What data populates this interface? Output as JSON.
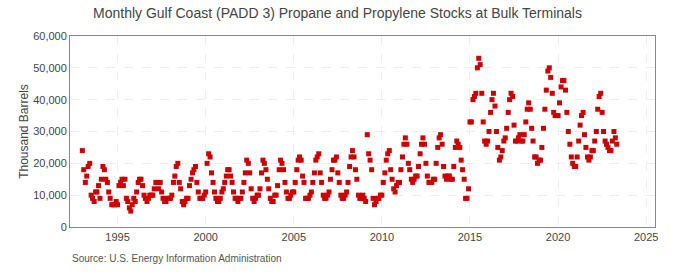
{
  "chart_data": {
    "type": "scatter",
    "title": "Monthly Gulf Coast (PADD 3) Propane and Propylene Stocks at Bulk Terminals",
    "y_label": "Thousand Barrels",
    "annotations": [
      "Source: U.S. Energy Information Administration"
    ],
    "color": "#cc0000",
    "marker": "square",
    "grid": true,
    "xlim": [
      1992.3,
      2025.5
    ],
    "ylim": [
      0,
      60000
    ],
    "xticks": [
      1995,
      2000,
      2005,
      2010,
      2015,
      2020,
      2025
    ],
    "yticks": [
      0,
      {
        "value": 10000,
        "label": "10,000"
      },
      {
        "value": 20000,
        "label": "20,000"
      },
      {
        "value": 30000,
        "label": "30,000"
      },
      {
        "value": 40000,
        "label": "40,000"
      },
      {
        "value": 50000,
        "label": "50,000"
      },
      {
        "value": 60000,
        "label": "60,000"
      }
    ],
    "x": [
      1993.0,
      1993.08,
      1993.17,
      1993.25,
      1993.33,
      1993.42,
      1993.5,
      1993.58,
      1993.67,
      1993.75,
      1993.83,
      1993.92,
      1994.0,
      1994.08,
      1994.17,
      1994.25,
      1994.33,
      1994.42,
      1994.5,
      1994.58,
      1994.67,
      1994.75,
      1994.83,
      1994.92,
      1995.0,
      1995.08,
      1995.17,
      1995.25,
      1995.33,
      1995.42,
      1995.5,
      1995.58,
      1995.67,
      1995.75,
      1995.83,
      1995.92,
      1996.0,
      1996.08,
      1996.17,
      1996.25,
      1996.33,
      1996.42,
      1996.5,
      1996.58,
      1996.67,
      1996.75,
      1996.83,
      1996.92,
      1997.0,
      1997.08,
      1997.17,
      1997.25,
      1997.33,
      1997.42,
      1997.5,
      1997.58,
      1997.67,
      1997.75,
      1997.83,
      1997.92,
      1998.0,
      1998.08,
      1998.17,
      1998.25,
      1998.33,
      1998.42,
      1998.5,
      1998.58,
      1998.67,
      1998.75,
      1998.83,
      1998.92,
      1999.0,
      1999.08,
      1999.17,
      1999.25,
      1999.33,
      1999.42,
      1999.5,
      1999.58,
      1999.67,
      1999.75,
      1999.83,
      1999.92,
      2000.0,
      2000.08,
      2000.17,
      2000.25,
      2000.33,
      2000.42,
      2000.5,
      2000.58,
      2000.67,
      2000.75,
      2000.83,
      2000.92,
      2001.0,
      2001.08,
      2001.17,
      2001.25,
      2001.33,
      2001.42,
      2001.5,
      2001.58,
      2001.67,
      2001.75,
      2001.83,
      2001.92,
      2002.0,
      2002.08,
      2002.17,
      2002.25,
      2002.33,
      2002.42,
      2002.5,
      2002.58,
      2002.67,
      2002.75,
      2002.83,
      2002.92,
      2003.0,
      2003.08,
      2003.17,
      2003.25,
      2003.33,
      2003.42,
      2003.5,
      2003.58,
      2003.67,
      2003.75,
      2003.83,
      2003.92,
      2004.0,
      2004.08,
      2004.17,
      2004.25,
      2004.33,
      2004.42,
      2004.5,
      2004.58,
      2004.67,
      2004.75,
      2004.83,
      2004.92,
      2005.0,
      2005.08,
      2005.17,
      2005.25,
      2005.33,
      2005.42,
      2005.5,
      2005.58,
      2005.67,
      2005.75,
      2005.83,
      2005.92,
      2006.0,
      2006.08,
      2006.17,
      2006.25,
      2006.33,
      2006.42,
      2006.5,
      2006.58,
      2006.67,
      2006.75,
      2006.83,
      2006.92,
      2007.0,
      2007.08,
      2007.17,
      2007.25,
      2007.33,
      2007.42,
      2007.5,
      2007.58,
      2007.67,
      2007.75,
      2007.83,
      2007.92,
      2008.0,
      2008.08,
      2008.17,
      2008.25,
      2008.33,
      2008.42,
      2008.5,
      2008.58,
      2008.67,
      2008.75,
      2008.83,
      2008.92,
      2009.0,
      2009.08,
      2009.17,
      2009.25,
      2009.33,
      2009.42,
      2009.5,
      2009.58,
      2009.67,
      2009.75,
      2009.83,
      2009.92,
      2010.0,
      2010.08,
      2010.17,
      2010.25,
      2010.33,
      2010.42,
      2010.5,
      2010.58,
      2010.67,
      2010.75,
      2010.83,
      2010.92,
      2011.0,
      2011.08,
      2011.17,
      2011.25,
      2011.33,
      2011.42,
      2011.5,
      2011.58,
      2011.67,
      2011.75,
      2011.83,
      2011.92,
      2012.0,
      2012.08,
      2012.17,
      2012.25,
      2012.33,
      2012.42,
      2012.5,
      2012.58,
      2012.67,
      2012.75,
      2012.83,
      2012.92,
      2013.0,
      2013.08,
      2013.17,
      2013.25,
      2013.33,
      2013.42,
      2013.5,
      2013.58,
      2013.67,
      2013.75,
      2013.83,
      2013.92,
      2014.0,
      2014.08,
      2014.17,
      2014.25,
      2014.33,
      2014.42,
      2014.5,
      2014.58,
      2014.67,
      2014.75,
      2014.83,
      2014.92,
      2015.0,
      2015.08,
      2015.17,
      2015.25,
      2015.33,
      2015.42,
      2015.5,
      2015.58,
      2015.67,
      2015.75,
      2015.83,
      2015.92,
      2016.0,
      2016.08,
      2016.17,
      2016.25,
      2016.33,
      2016.42,
      2016.5,
      2016.58,
      2016.67,
      2016.75,
      2016.83,
      2016.92,
      2017.0,
      2017.08,
      2017.17,
      2017.25,
      2017.33,
      2017.42,
      2017.5,
      2017.58,
      2017.67,
      2017.75,
      2017.83,
      2017.92,
      2018.0,
      2018.08,
      2018.17,
      2018.25,
      2018.33,
      2018.42,
      2018.5,
      2018.58,
      2018.67,
      2018.75,
      2018.83,
      2018.92,
      2019.0,
      2019.08,
      2019.17,
      2019.25,
      2019.33,
      2019.42,
      2019.5,
      2019.58,
      2019.67,
      2019.75,
      2019.83,
      2019.92,
      2020.0,
      2020.08,
      2020.17,
      2020.25,
      2020.33,
      2020.42,
      2020.5,
      2020.58,
      2020.67,
      2020.75,
      2020.83,
      2020.92,
      2021.0,
      2021.08,
      2021.17,
      2021.25,
      2021.33,
      2021.42,
      2021.5,
      2021.58,
      2021.67,
      2021.75,
      2021.83,
      2021.92,
      2022.0,
      2022.08,
      2022.17,
      2022.25,
      2022.33,
      2022.42,
      2022.5,
      2022.58,
      2022.67,
      2022.75,
      2022.83,
      2022.92,
      2023.0,
      2023.08,
      2023.17,
      2023.25,
      2023.33
    ],
    "values": [
      24000,
      18000,
      14000,
      16000,
      19000,
      20000,
      10000,
      9000,
      8000,
      11000,
      11000,
      13000,
      9000,
      15000,
      19000,
      18000,
      15000,
      14000,
      11000,
      9000,
      7000,
      7000,
      7000,
      8000,
      7000,
      13000,
      14000,
      15000,
      13000,
      15000,
      9000,
      8000,
      6000,
      5000,
      7000,
      9000,
      8000,
      11000,
      14000,
      15000,
      15000,
      13000,
      10000,
      9000,
      8000,
      9000,
      10000,
      10000,
      10000,
      12000,
      14000,
      14000,
      12000,
      14000,
      11000,
      9000,
      8000,
      8000,
      9000,
      9000,
      9000,
      10000,
      14000,
      16000,
      19000,
      20000,
      14000,
      12000,
      8000,
      7000,
      8000,
      9000,
      9000,
      13000,
      15000,
      17000,
      18000,
      19000,
      14000,
      11000,
      9000,
      9000,
      9000,
      10000,
      11000,
      20000,
      23000,
      22000,
      17000,
      14000,
      11000,
      9000,
      8000,
      8000,
      9000,
      11000,
      12000,
      14000,
      16000,
      18000,
      18000,
      16000,
      14000,
      11000,
      9000,
      9000,
      8000,
      9000,
      9000,
      11000,
      14000,
      17000,
      21000,
      20000,
      17000,
      12000,
      9000,
      8000,
      9000,
      10000,
      10000,
      12000,
      17000,
      21000,
      20000,
      18000,
      15000,
      12000,
      9000,
      8000,
      8000,
      10000,
      10000,
      13000,
      18000,
      21000,
      20000,
      18000,
      14000,
      11000,
      9000,
      9000,
      10000,
      11000,
      11000,
      14000,
      18000,
      21000,
      22000,
      21000,
      16000,
      14000,
      9000,
      9000,
      9000,
      10000,
      11000,
      14000,
      17000,
      21000,
      22000,
      23000,
      17000,
      14000,
      10000,
      9000,
      9000,
      10000,
      11000,
      15000,
      18000,
      21000,
      21000,
      22000,
      17000,
      14000,
      10000,
      9000,
      9000,
      10000,
      11000,
      14000,
      19000,
      22000,
      24000,
      22000,
      18000,
      15000,
      10000,
      9000,
      9000,
      10000,
      9000,
      8000,
      29000,
      23000,
      21000,
      18000,
      9000,
      7000,
      8000,
      9000,
      9000,
      10000,
      10000,
      14000,
      17000,
      21000,
      23000,
      24000,
      18000,
      15000,
      12000,
      11000,
      13000,
      14000,
      14000,
      18000,
      22000,
      26000,
      28000,
      26000,
      20000,
      18000,
      15000,
      14000,
      15000,
      16000,
      16000,
      19000,
      23000,
      26000,
      28000,
      26000,
      20000,
      16000,
      14000,
      14000,
      14000,
      15000,
      15000,
      20000,
      25000,
      28000,
      29000,
      26000,
      19000,
      16000,
      15000,
      16000,
      16000,
      15000,
      15000,
      19000,
      25000,
      27000,
      26000,
      25000,
      21000,
      18000,
      15000,
      9000,
      9000,
      12000,
      33000,
      33000,
      40000,
      41000,
      42000,
      50000,
      53000,
      51000,
      42000,
      33000,
      27000,
      26000,
      27000,
      30000,
      36000,
      40000,
      42000,
      38000,
      30000,
      25000,
      21000,
      22000,
      24000,
      27000,
      28000,
      31000,
      36000,
      40000,
      42000,
      41000,
      32000,
      27000,
      27000,
      28000,
      29000,
      27000,
      27000,
      29000,
      33000,
      37000,
      39000,
      37000,
      31000,
      27000,
      22000,
      22000,
      20000,
      21000,
      21000,
      25000,
      31000,
      37000,
      43000,
      49000,
      50000,
      47000,
      42000,
      36000,
      35000,
      35000,
      35000,
      39000,
      44000,
      46000,
      46000,
      43000,
      36000,
      30000,
      26000,
      22000,
      20000,
      19000,
      19000,
      22000,
      27000,
      32000,
      35000,
      36000,
      29000,
      25000,
      22000,
      21000,
      22000,
      24000,
      24000,
      27000,
      30000,
      37000,
      41000,
      42000,
      36000,
      30000,
      27000,
      26000,
      25000,
      24000,
      24000,
      27000,
      30000,
      28000,
      26000
    ]
  }
}
